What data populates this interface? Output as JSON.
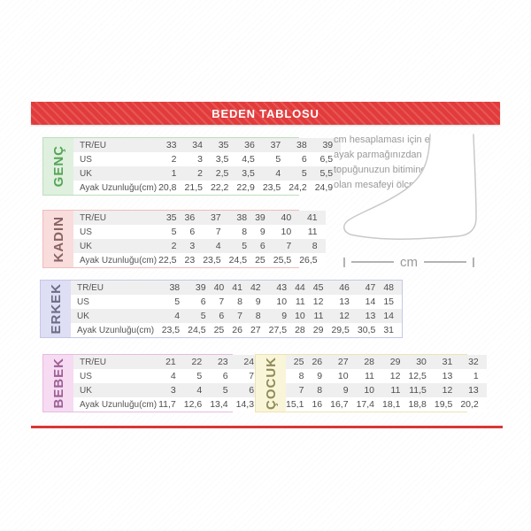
{
  "title": "BEDEN TABLOSU",
  "colors": {
    "header_red": "#e23b3b",
    "bottom_line_red": "#d93838"
  },
  "row_labels": [
    "TR/EU",
    "US",
    "UK",
    "Ayak Uzunluğu(cm)"
  ],
  "sections": [
    {
      "label": "GENÇ",
      "has_row_labels": true,
      "colors": {
        "bg": "#dff0df",
        "text": "#57a457",
        "border": "#bcdebc"
      },
      "rows": [
        [
          "33",
          "34",
          "35",
          "36",
          "37",
          "38",
          "39"
        ],
        [
          "2",
          "3",
          "3,5",
          "4,5",
          "5",
          "6",
          "6,5"
        ],
        [
          "1",
          "2",
          "2,5",
          "3,5",
          "4",
          "5",
          "5,5"
        ],
        [
          "20,8",
          "21,5",
          "22,2",
          "22,9",
          "23,5",
          "24,2",
          "24,9"
        ]
      ]
    },
    {
      "label": "KADIN",
      "has_row_labels": true,
      "colors": {
        "bg": "#f9dcdc",
        "text": "#8a6262",
        "border": "#eebdbd"
      },
      "rows": [
        [
          "35",
          "36",
          "37",
          "38",
          "39",
          "40",
          "41"
        ],
        [
          "5",
          "6",
          "7",
          "8",
          "9",
          "10",
          "11"
        ],
        [
          "2",
          "3",
          "4",
          "5",
          "6",
          "7",
          "8"
        ],
        [
          "22,5",
          "23",
          "23,5",
          "24,5",
          "25",
          "25,5",
          "26,5"
        ]
      ]
    },
    {
      "label": "ERKEK",
      "has_row_labels": true,
      "colors": {
        "bg": "#dedef4",
        "text": "#6c6c86",
        "border": "#c6c6ea"
      },
      "rows": [
        [
          "38",
          "39",
          "40",
          "41",
          "42",
          "43",
          "44",
          "45",
          "46",
          "47",
          "48"
        ],
        [
          "5",
          "6",
          "7",
          "8",
          "9",
          "10",
          "11",
          "12",
          "13",
          "14",
          "15"
        ],
        [
          "4",
          "5",
          "6",
          "7",
          "8",
          "9",
          "10",
          "11",
          "12",
          "13",
          "14"
        ],
        [
          "23,5",
          "24,5",
          "25",
          "26",
          "27",
          "27,5",
          "28",
          "29",
          "29,5",
          "30,5",
          "31"
        ]
      ]
    },
    {
      "label": "BEBEK",
      "has_row_labels": true,
      "colors": {
        "bg": "#f6dbf2",
        "text": "#9c5f94",
        "border": "#e6bce0"
      },
      "rows": [
        [
          "21",
          "22",
          "23",
          "24"
        ],
        [
          "4",
          "5",
          "6",
          "7"
        ],
        [
          "3",
          "4",
          "5",
          "6"
        ],
        [
          "11,7",
          "12,6",
          "13,4",
          "14,3"
        ]
      ]
    },
    {
      "label": "ÇOCUK",
      "has_row_labels": false,
      "colors": {
        "bg": "#f9f5d9",
        "text": "#8f8c58",
        "border": "#ece4b4"
      },
      "rows": [
        [
          "25",
          "26",
          "27",
          "28",
          "29",
          "30",
          "31",
          "32"
        ],
        [
          "8",
          "9",
          "10",
          "11",
          "12",
          "12,5",
          "13",
          "1"
        ],
        [
          "7",
          "8",
          "9",
          "10",
          "11",
          "11,5",
          "12",
          "13"
        ],
        [
          "15,1",
          "16",
          "16,7",
          "17,4",
          "18,1",
          "18,8",
          "19,5",
          "20,2"
        ]
      ]
    }
  ],
  "instructions": "cm hesaplaması için en uzun ayak parmağınızdan topuğunuzun bitimine kadar olan mesafeyi ölçmelisiniz.",
  "measure_unit": "cm"
}
